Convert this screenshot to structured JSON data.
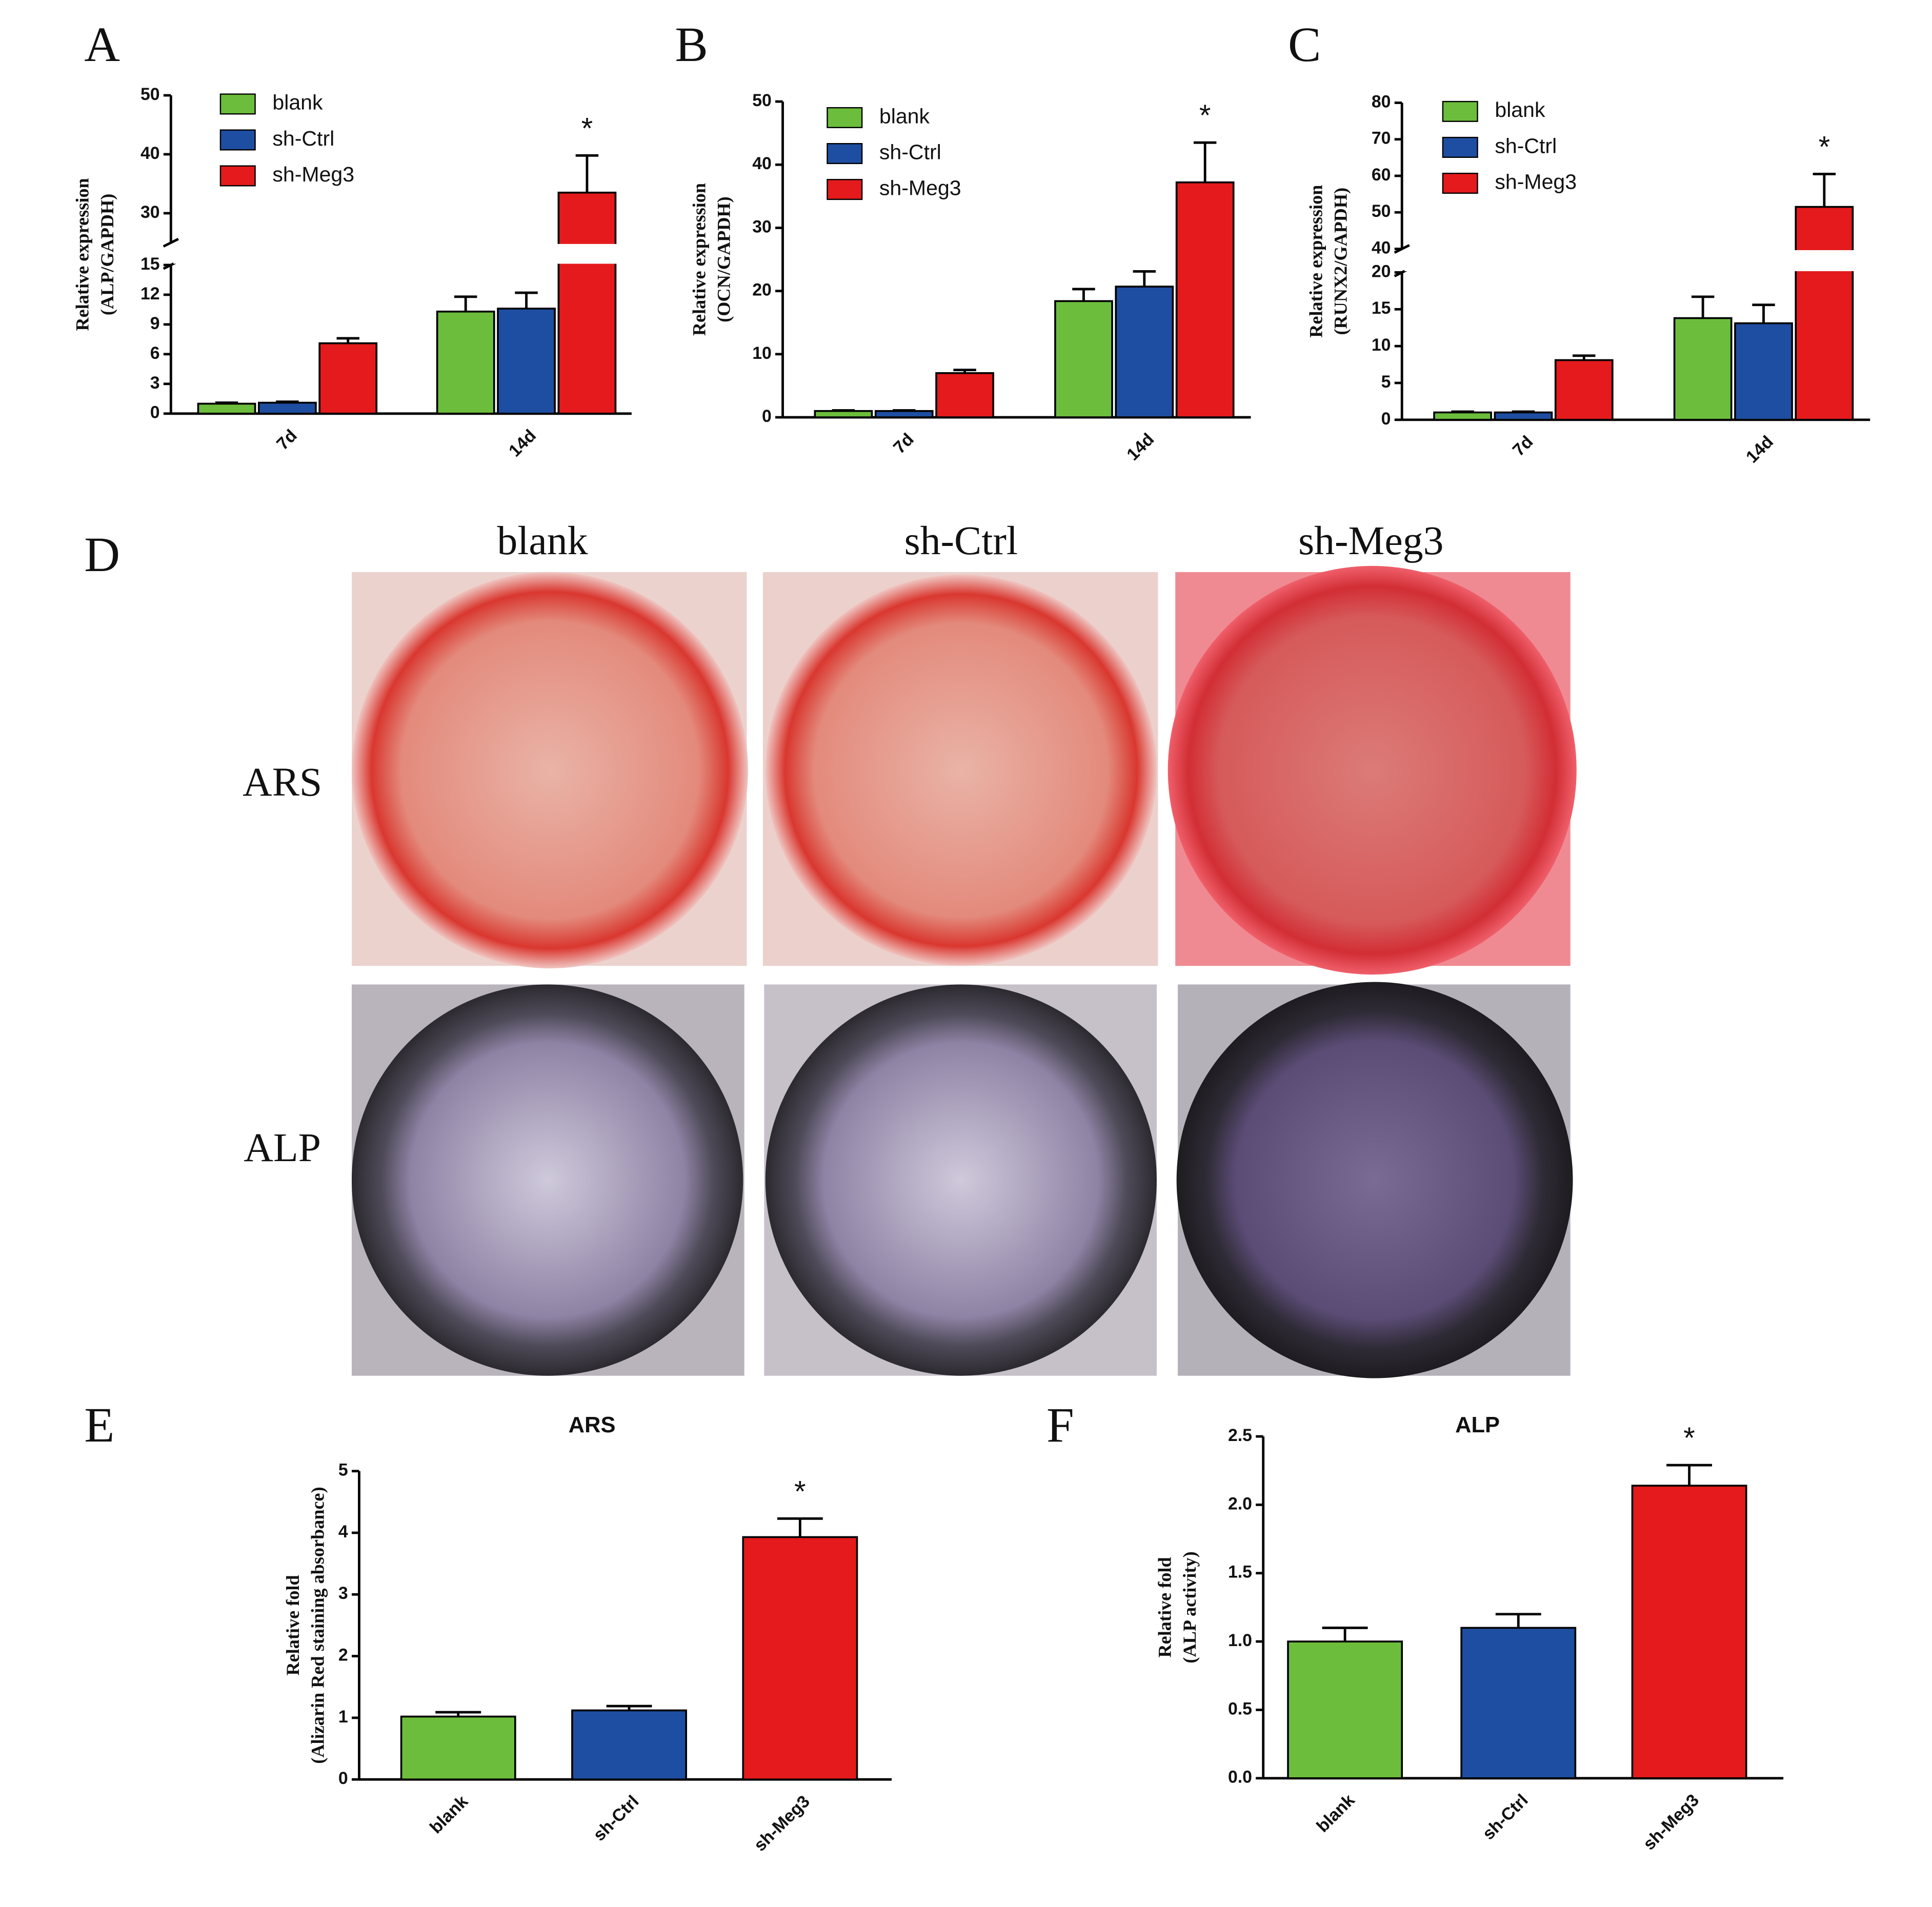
{
  "chart_data": [
    {
      "type": "bar",
      "panel": "A",
      "ylabel": [
        "Relative expression",
        "(ALP/GAPDH)"
      ],
      "categories": [
        "7d",
        "14d"
      ],
      "series": [
        {
          "name": "blank",
          "color": "#6cbd3c",
          "values": [
            1.0,
            10.3
          ],
          "errors": [
            0.1,
            1.5
          ]
        },
        {
          "name": "sh-Ctrl",
          "color": "#1e4ea1",
          "values": [
            1.1,
            10.6
          ],
          "errors": [
            0.1,
            1.6
          ]
        },
        {
          "name": "sh-Meg3",
          "color": "#e41a1c",
          "values": [
            7.1,
            33.5
          ],
          "errors": [
            0.5,
            6.3
          ]
        }
      ],
      "axis_segments": [
        {
          "ylim": [
            0,
            15
          ],
          "yticks": [
            0,
            3,
            6,
            9,
            12,
            15
          ]
        },
        {
          "ylim": [
            25,
            50
          ],
          "yticks": [
            30,
            40,
            50
          ]
        }
      ],
      "annotations": [
        {
          "text": "*",
          "category": "14d",
          "series": "sh-Meg3"
        }
      ]
    },
    {
      "type": "bar",
      "panel": "B",
      "ylabel": [
        "Relative expression",
        "(OCN/GAPDH)"
      ],
      "categories": [
        "7d",
        "14d"
      ],
      "series": [
        {
          "name": "blank",
          "color": "#6cbd3c",
          "values": [
            1.0,
            18.4
          ],
          "errors": [
            0.1,
            1.9
          ]
        },
        {
          "name": "sh-Ctrl",
          "color": "#1e4ea1",
          "values": [
            1.0,
            20.7
          ],
          "errors": [
            0.1,
            2.4
          ]
        },
        {
          "name": "sh-Meg3",
          "color": "#e41a1c",
          "values": [
            7.0,
            37.2
          ],
          "errors": [
            0.5,
            6.3
          ]
        }
      ],
      "axis_segments": [
        {
          "ylim": [
            0,
            50
          ],
          "yticks": [
            0,
            10,
            20,
            30,
            40,
            50
          ]
        }
      ],
      "annotations": [
        {
          "text": "*",
          "category": "14d",
          "series": "sh-Meg3"
        }
      ]
    },
    {
      "type": "bar",
      "panel": "C",
      "ylabel": [
        "Relative expression",
        "(RUNX2/GAPDH)"
      ],
      "categories": [
        "7d",
        "14d"
      ],
      "series": [
        {
          "name": "blank",
          "color": "#6cbd3c",
          "values": [
            1.0,
            13.8
          ],
          "errors": [
            0.1,
            2.9
          ]
        },
        {
          "name": "sh-Ctrl",
          "color": "#1e4ea1",
          "values": [
            1.0,
            13.1
          ],
          "errors": [
            0.1,
            2.5
          ]
        },
        {
          "name": "sh-Meg3",
          "color": "#e41a1c",
          "values": [
            8.1,
            51.5
          ],
          "errors": [
            0.6,
            9.0
          ]
        }
      ],
      "axis_segments": [
        {
          "ylim": [
            0,
            20
          ],
          "yticks": [
            0,
            5,
            10,
            15,
            20
          ]
        },
        {
          "ylim": [
            40,
            80
          ],
          "yticks": [
            40,
            50,
            60,
            70,
            80
          ]
        }
      ],
      "annotations": [
        {
          "text": "*",
          "category": "14d",
          "series": "sh-Meg3"
        }
      ]
    },
    {
      "type": "bar",
      "panel": "E",
      "title": "ARS",
      "ylabel": [
        "Relative fold",
        "(Alizarin Red staining absorbance)"
      ],
      "categories": [
        "blank",
        "sh-Ctrl",
        "sh-Meg3"
      ],
      "series": [
        {
          "colors": [
            "#6cbd3c",
            "#1e4ea1",
            "#e41a1c"
          ],
          "values": [
            1.02,
            1.12,
            3.93
          ],
          "errors": [
            0.07,
            0.07,
            0.3
          ]
        }
      ],
      "axis_segments": [
        {
          "ylim": [
            0,
            5
          ],
          "yticks": [
            0,
            1,
            2,
            3,
            4,
            5
          ]
        }
      ],
      "annotations": [
        {
          "text": "*",
          "category": "sh-Meg3"
        }
      ]
    },
    {
      "type": "bar",
      "panel": "F",
      "title": "ALP",
      "ylabel": [
        "Relative fold",
        "(ALP activity)"
      ],
      "categories": [
        "blank",
        "sh-Ctrl",
        "sh-Meg3"
      ],
      "series": [
        {
          "colors": [
            "#6cbd3c",
            "#1e4ea1",
            "#e41a1c"
          ],
          "values": [
            1.0,
            1.1,
            2.14
          ],
          "errors": [
            0.1,
            0.1,
            0.15
          ]
        }
      ],
      "axis_segments": [
        {
          "ylim": [
            0,
            2.5
          ],
          "yticks": [
            {
              "value": 0,
              "label": "0.0"
            },
            0.5,
            {
              "value": 1,
              "label": "1.0"
            },
            1.5,
            {
              "value": 2,
              "label": "2.0"
            },
            2.5
          ]
        }
      ],
      "annotations": [
        {
          "text": "*",
          "category": "sh-Meg3"
        }
      ]
    }
  ],
  "photo_panel": {
    "panel": "D",
    "columns": [
      "blank",
      "sh-Ctrl",
      "sh-Meg3"
    ],
    "rows": [
      "ARS",
      "ALP"
    ]
  }
}
